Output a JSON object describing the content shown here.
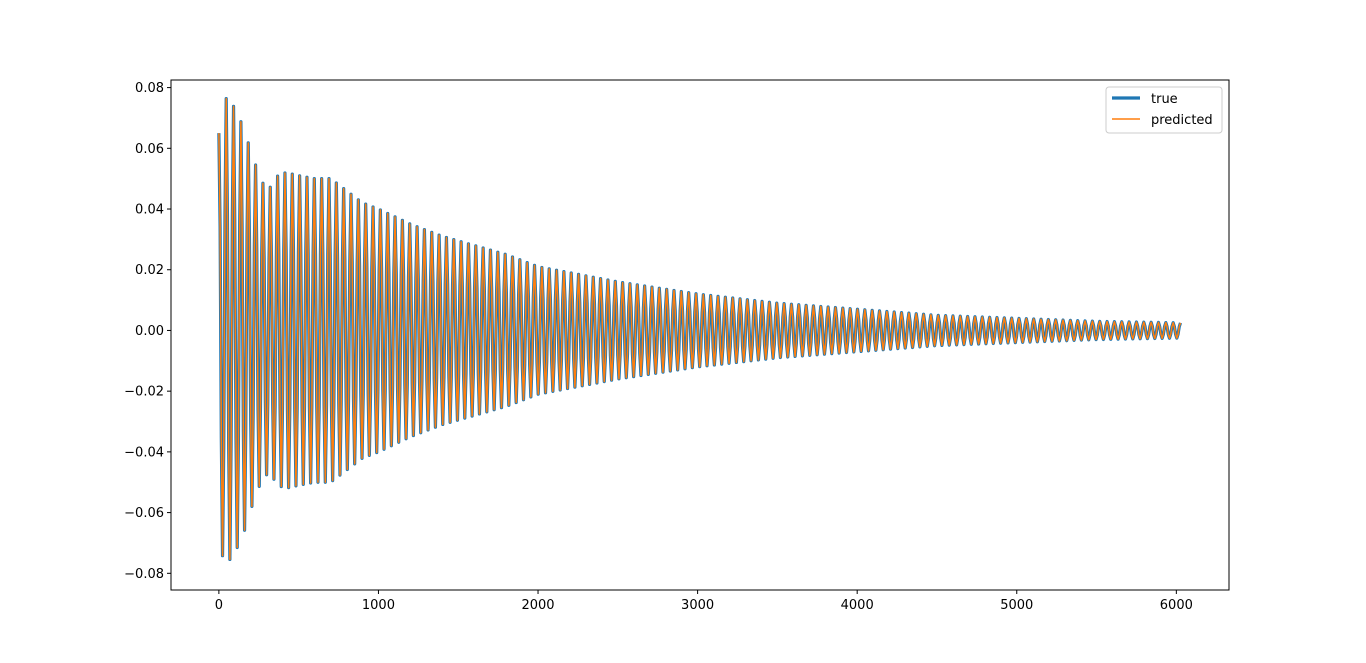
{
  "chart_data": {
    "type": "line",
    "xlim": [
      -300,
      6330
    ],
    "ylim": [
      -0.0855,
      0.0825
    ],
    "xticks": [
      0,
      1000,
      2000,
      3000,
      4000,
      5000,
      6000
    ],
    "xtick_labels": [
      "0",
      "1000",
      "2000",
      "3000",
      "4000",
      "5000",
      "6000"
    ],
    "yticks": [
      -0.08,
      -0.06,
      -0.04,
      -0.02,
      0.0,
      0.02,
      0.04,
      0.06,
      0.08
    ],
    "ytick_labels": [
      "−0.08",
      "−0.06",
      "−0.04",
      "−0.02",
      "0.00",
      "0.02",
      "0.04",
      "0.06",
      "0.08"
    ],
    "legend": {
      "placement": "upper-right"
    },
    "oscillation": {
      "x_start": 0,
      "x_end": 6030,
      "period": 46,
      "envelope": [
        [
          0,
          0.065
        ],
        [
          30,
          0.077
        ],
        [
          80,
          0.075
        ],
        [
          120,
          0.071
        ],
        [
          160,
          0.066
        ],
        [
          200,
          0.059
        ],
        [
          240,
          0.053
        ],
        [
          280,
          0.048
        ],
        [
          320,
          0.047
        ],
        [
          370,
          0.051
        ],
        [
          420,
          0.052
        ],
        [
          500,
          0.051
        ],
        [
          600,
          0.05
        ],
        [
          700,
          0.05
        ],
        [
          800,
          0.046
        ],
        [
          900,
          0.042
        ],
        [
          1000,
          0.04
        ],
        [
          1200,
          0.035
        ],
        [
          1400,
          0.031
        ],
        [
          1600,
          0.028
        ],
        [
          1800,
          0.025
        ],
        [
          2000,
          0.021
        ],
        [
          2200,
          0.019
        ],
        [
          2500,
          0.016
        ],
        [
          3000,
          0.012
        ],
        [
          3500,
          0.009
        ],
        [
          4000,
          0.007
        ],
        [
          4500,
          0.005
        ],
        [
          5000,
          0.004
        ],
        [
          5500,
          0.003
        ],
        [
          6030,
          0.0025
        ]
      ]
    },
    "series": [
      {
        "name": "true",
        "color": "#1f77b4",
        "line_width": 3.2
      },
      {
        "name": "predicted",
        "color": "#ff7f0e",
        "line_width": 1.5
      }
    ]
  }
}
